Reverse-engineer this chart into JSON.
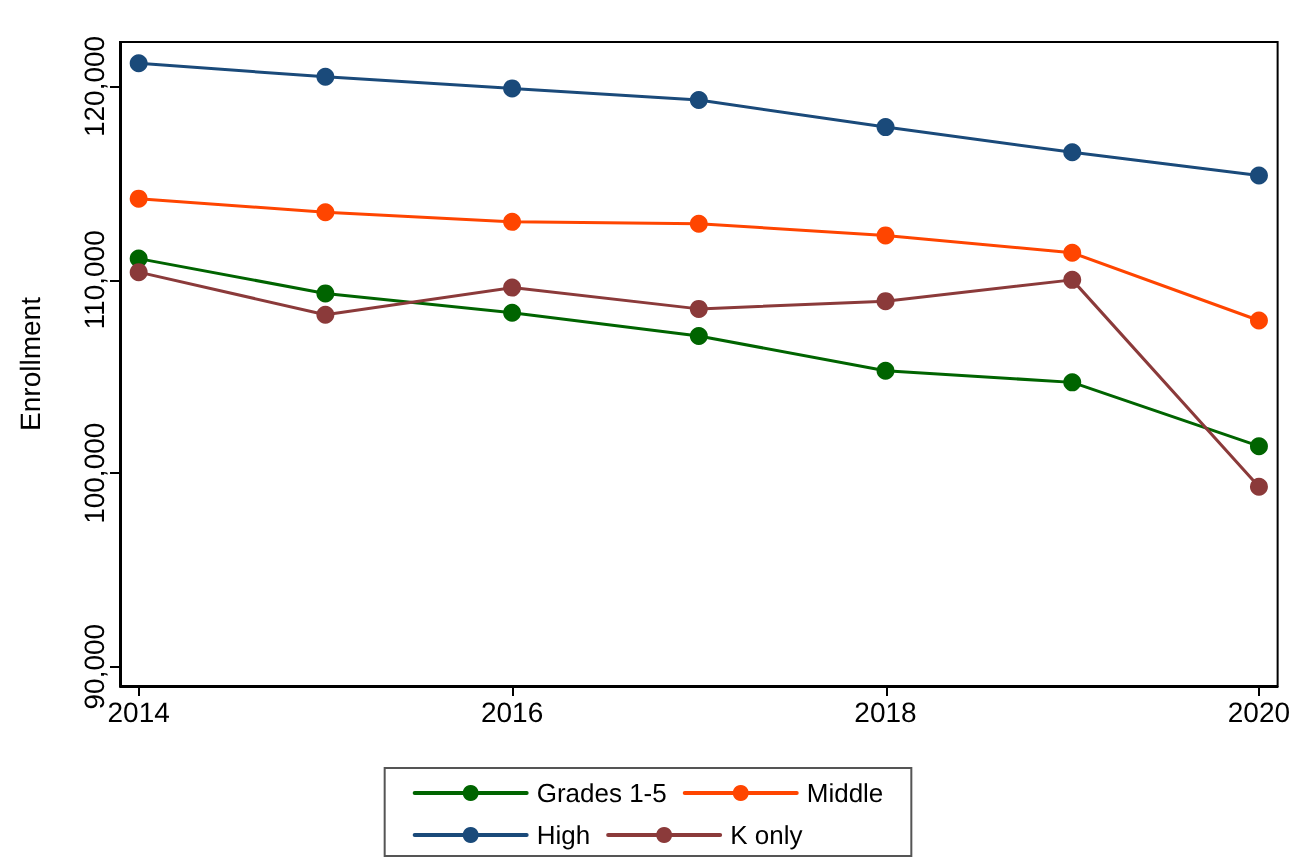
{
  "chart_data": {
    "type": "line",
    "ylabel": "Enrollment",
    "x": [
      2014,
      2015,
      2016,
      2017,
      2018,
      2019,
      2020
    ],
    "xlim": [
      2013.9,
      2020.1
    ],
    "xticks": [
      2014,
      2016,
      2018,
      2020
    ],
    "ylim": [
      89000,
      122300
    ],
    "yticks": [
      {
        "value": 90000,
        "label": "90,000"
      },
      {
        "value": 100000,
        "label": "100,000"
      },
      {
        "value": 110000,
        "label": "110,000"
      },
      {
        "value": 120000,
        "label": "120,000"
      }
    ],
    "series": [
      {
        "name": "Grades 1-5",
        "color": "#006400",
        "values": [
          111100,
          109300,
          108300,
          107100,
          105300,
          104700,
          101400
        ]
      },
      {
        "name": "Middle",
        "color": "#ff4500",
        "values": [
          114200,
          113500,
          113000,
          112900,
          112300,
          111400,
          107900
        ]
      },
      {
        "name": "High",
        "color": "#1a4a7a",
        "values": [
          121200,
          120500,
          119900,
          119300,
          117900,
          116600,
          115400
        ]
      },
      {
        "name": "K only",
        "color": "#8b3a3a",
        "values": [
          110400,
          108200,
          109600,
          108500,
          108900,
          110000,
          99300
        ]
      }
    ],
    "marker": "circle",
    "line_style": "solid",
    "grid": false,
    "legend": "bottom"
  }
}
